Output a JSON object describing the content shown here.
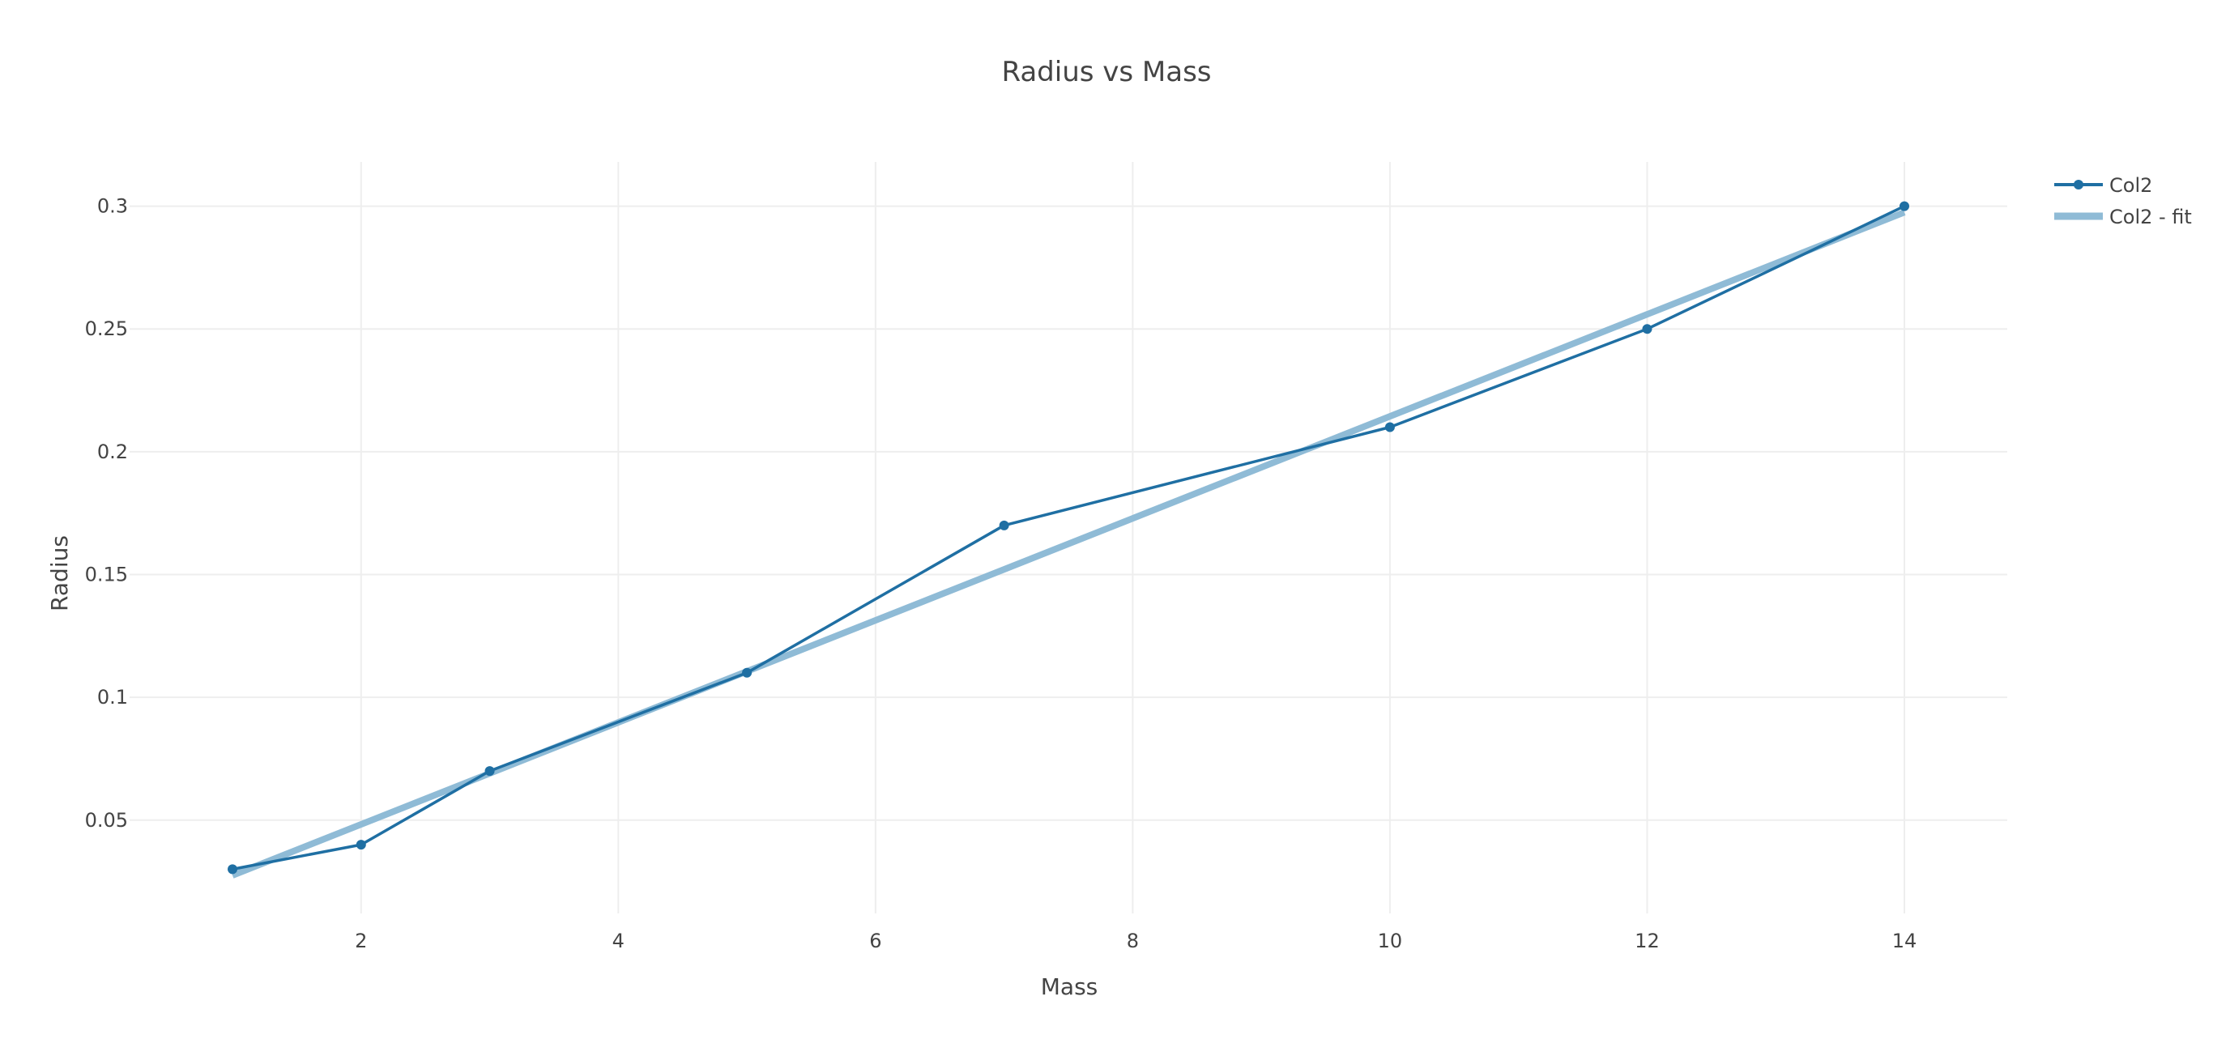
{
  "chart_data": {
    "type": "line",
    "title": "Radius vs Mass",
    "xlabel": "Mass",
    "ylabel": "Radius",
    "xlim": [
      0.2,
      14.8
    ],
    "ylim": [
      0.012,
      0.318
    ],
    "x_ticks": [
      2,
      4,
      6,
      8,
      10,
      12,
      14
    ],
    "y_ticks": [
      0.05,
      0.1,
      0.15,
      0.2,
      0.25,
      0.3
    ],
    "x_tick_labels": [
      "2",
      "4",
      "6",
      "8",
      "10",
      "12",
      "14"
    ],
    "y_tick_labels": [
      "0.05",
      "0.1",
      "0.15",
      "0.2",
      "0.25",
      "0.3"
    ],
    "grid": true,
    "legend_position": "top-right",
    "series": [
      {
        "name": "Col2",
        "color": "#1f6fa3",
        "mode": "lines+markers",
        "x": [
          1,
          2,
          3,
          5,
          7,
          10,
          12,
          14
        ],
        "y": [
          0.03,
          0.04,
          0.07,
          0.11,
          0.17,
          0.21,
          0.25,
          0.3
        ]
      },
      {
        "name": "Col2 - fit",
        "color": "#8fbbd6",
        "mode": "lines",
        "x": [
          1,
          14
        ],
        "y": [
          0.0275,
          0.2975
        ]
      }
    ]
  }
}
